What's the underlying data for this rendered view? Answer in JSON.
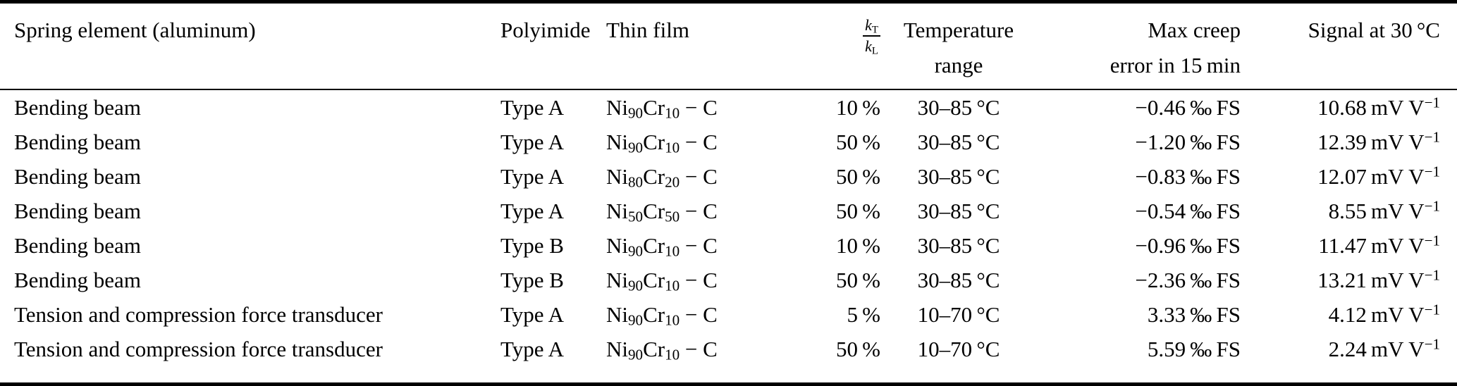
{
  "colors": {
    "text": "#000000",
    "background": "#ffffff",
    "rule": "#000000"
  },
  "table": {
    "columns": [
      {
        "key": "spring_element",
        "label": "Spring element (aluminum)",
        "align": "left"
      },
      {
        "key": "polyimide",
        "label": "Polyimide",
        "align": "left"
      },
      {
        "key": "thin_film",
        "label": "Thin film",
        "align": "left"
      },
      {
        "key": "stiffness_ratio",
        "label_numerator": "k~T~",
        "label_denominator": "k~L~",
        "align": "right"
      },
      {
        "key": "temperature_range",
        "label": "Temperature",
        "label_line2": "range",
        "align": "center"
      },
      {
        "key": "max_creep_error",
        "label": "Max creep",
        "label_line2": "error in 15 min",
        "align": "right"
      },
      {
        "key": "signal_at_30c",
        "label": "Signal at 30 °C",
        "align": "right"
      }
    ],
    "rows": [
      [
        "Bending beam",
        "Type A",
        "Ni~90~Cr~10~ − C",
        "10 %",
        "30–85 °C",
        "−0.46 ‰ FS",
        "10.68 mV V^−1^"
      ],
      [
        "Bending beam",
        "Type A",
        "Ni~90~Cr~10~ − C",
        "50 %",
        "30–85 °C",
        "−1.20 ‰ FS",
        "12.39 mV V^−1^"
      ],
      [
        "Bending beam",
        "Type A",
        "Ni~80~Cr~20~ − C",
        "50 %",
        "30–85 °C",
        "−0.83 ‰ FS",
        "12.07 mV V^−1^"
      ],
      [
        "Bending beam",
        "Type A",
        "Ni~50~Cr~50~ − C",
        "50 %",
        "30–85 °C",
        "−0.54 ‰ FS",
        "8.55 mV V^−1^"
      ],
      [
        "Bending beam",
        "Type B",
        "Ni~90~Cr~10~ − C",
        "10 %",
        "30–85 °C",
        "−0.96 ‰ FS",
        "11.47 mV V^−1^"
      ],
      [
        "Bending beam",
        "Type B",
        "Ni~90~Cr~10~ − C",
        "50 %",
        "30–85 °C",
        "−2.36 ‰ FS",
        "13.21 mV V^−1^"
      ],
      [
        "Tension and compression force transducer",
        "Type A",
        "Ni~90~Cr~10~ − C",
        "5 %",
        "10–70 °C",
        "3.33 ‰ FS",
        "4.12 mV V^−1^"
      ],
      [
        "Tension and compression force transducer",
        "Type A",
        "Ni~90~Cr~10~ − C",
        "50 %",
        "10–70 °C",
        "5.59 ‰ FS",
        "2.24 mV V^−1^"
      ]
    ]
  }
}
